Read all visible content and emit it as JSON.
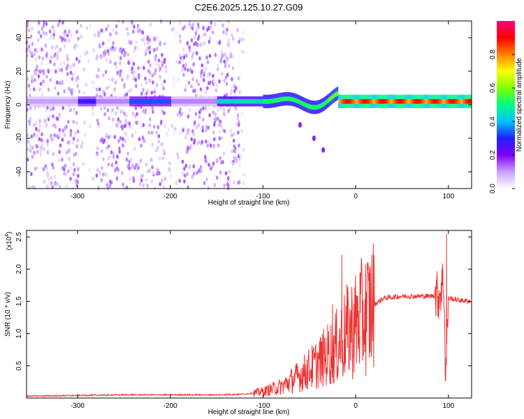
{
  "chart_data": [
    {
      "type": "heatmap",
      "title": "C2E6.2025.125.10.27.G09",
      "xlabel": "Height of straight line (km)",
      "ylabel": "Frequency (Hz)",
      "xlim": [
        -355,
        125
      ],
      "ylim": [
        -50,
        50
      ],
      "xticks": [
        -300,
        -200,
        -100,
        0,
        100
      ],
      "yticks": [
        -40,
        -20,
        0,
        20,
        40
      ],
      "colorbar": {
        "label": "Normalized spectral amplitude",
        "range": [
          0,
          1
        ],
        "ticks": [
          "0.0",
          "0.2",
          "0.4",
          "0.6",
          "0.8"
        ],
        "colormap": [
          "#ffffff",
          "#c8a0ff",
          "#8000ff",
          "#2020ff",
          "#00c0ff",
          "#00ff80",
          "#80ff00",
          "#ffff00",
          "#ff8000",
          "#ff0000",
          "#ff0080"
        ]
      },
      "features": {
        "noise_region_x": [
          -355,
          -125
        ],
        "noise_gap_x": [
          [
            -300,
            -282
          ],
          [
            -207,
            -190
          ]
        ],
        "main_band_freq": 2,
        "strong_band_x": [
          -20,
          125
        ],
        "tail_points": [
          [
            -60,
            -12
          ],
          [
            -45,
            -20
          ],
          [
            -35,
            -27
          ]
        ]
      },
      "grid": false
    },
    {
      "type": "line",
      "xlabel": "Height of straight line (km)",
      "ylabel": "SNR (10 * v/v)",
      "y_multiplier": "(x10",
      "y_multiplier_exp": "4",
      "y_multiplier_close": ")",
      "xlim": [
        -355,
        125
      ],
      "ylim": [
        0,
        2.6
      ],
      "xticks": [
        -300,
        -200,
        -100,
        0,
        100
      ],
      "yticks": [
        0.5,
        1.0,
        1.5,
        2.0,
        2.5
      ],
      "series": [
        {
          "color": "#ee3333",
          "x": [
            -355,
            -300,
            -250,
            -200,
            -150,
            -120,
            -100,
            -80,
            -60,
            -40,
            -20,
            -10,
            0,
            10,
            20,
            30,
            50,
            80,
            90,
            95,
            97,
            100,
            110,
            125
          ],
          "y": [
            0.03,
            0.04,
            0.05,
            0.05,
            0.05,
            0.06,
            0.1,
            0.18,
            0.35,
            0.55,
            0.8,
            1.0,
            1.15,
            1.3,
            1.45,
            1.55,
            1.58,
            1.58,
            1.6,
            1.85,
            0.3,
            1.55,
            1.52,
            1.5
          ]
        }
      ],
      "spikes": [
        [
          -15,
          2.22
        ],
        [
          98,
          2.55
        ],
        [
          -25,
          1.45
        ],
        [
          5,
          1.95
        ]
      ],
      "grid": false
    }
  ]
}
